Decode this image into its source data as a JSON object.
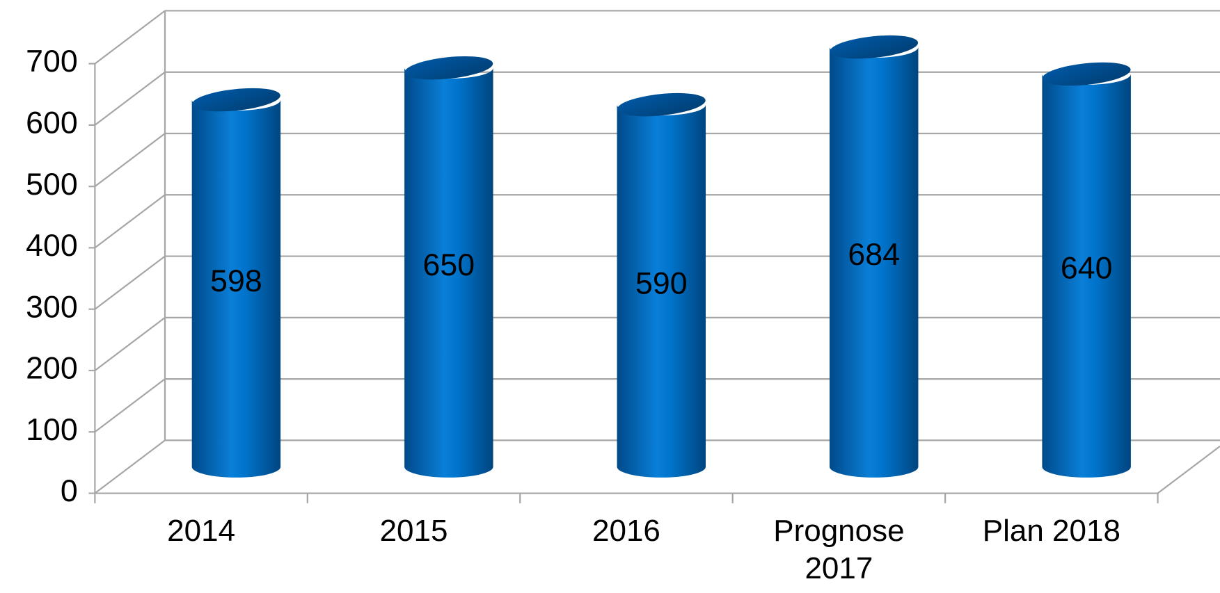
{
  "chart_data": {
    "type": "bar",
    "style": "3d-cylinder",
    "categories": [
      "2014",
      "2015",
      "2016",
      "Prognose 2017",
      "Plan 2018"
    ],
    "values": [
      598,
      650,
      590,
      684,
      640
    ],
    "color": "#0070c0",
    "ylim": [
      0,
      700
    ],
    "yticks": [
      0,
      100,
      200,
      300,
      400,
      500,
      600,
      700
    ],
    "grid": true
  }
}
